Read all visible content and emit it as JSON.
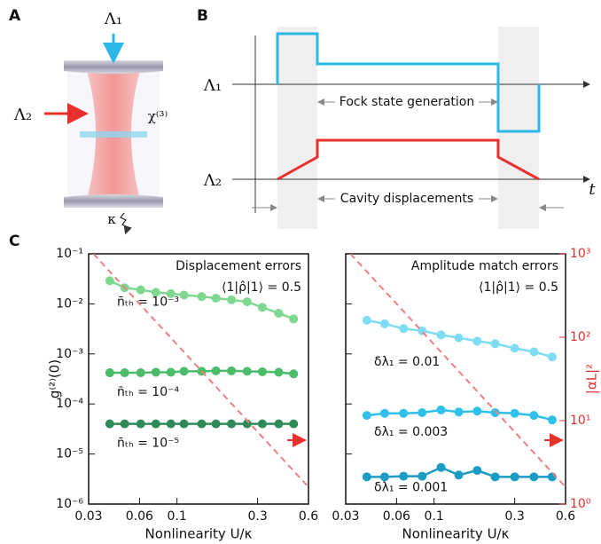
{
  "figure": {
    "panel_labels": [
      "A",
      "B",
      "C"
    ],
    "cavity": {
      "pump_top": "Λ₁",
      "pump_left": "Λ₂",
      "nonlinearity": "χ⁽³⁾",
      "decay": "κ"
    },
    "sequence": {
      "drive_1": "Λ₁",
      "drive_2": "Λ₂",
      "time": "t",
      "fock": "Fock state generation",
      "displacements": "Cavity displacements"
    }
  },
  "chart_data": [
    {
      "type": "line",
      "xscale": "log",
      "yscale": "log",
      "y2scale": "log",
      "annotations": [
        "Displacement errors",
        "⟨1|ρ̂|1⟩ = 0.5"
      ],
      "xlabel": "Nonlinearity U/κ",
      "ylabel": "g⁽²⁾(0)",
      "x": [
        0.04,
        0.049,
        0.061,
        0.075,
        0.092,
        0.11,
        0.14,
        0.17,
        0.21,
        0.26,
        0.32,
        0.4,
        0.49
      ],
      "xlim": [
        0.03,
        0.6
      ],
      "xticks": [
        0.03,
        0.06,
        0.1,
        0.3,
        0.6
      ],
      "ylim": [
        1e-06,
        0.1
      ],
      "yticks": [
        {
          "value": 1e-06,
          "label": "10⁻⁶"
        },
        {
          "value": 1e-05,
          "label": "10⁻⁵"
        },
        {
          "value": 0.0001,
          "label": "10⁻⁴"
        },
        {
          "value": 0.001,
          "label": "10⁻³"
        },
        {
          "value": 0.01,
          "label": "10⁻²"
        },
        {
          "value": 0.1,
          "label": "10⁻¹"
        }
      ],
      "ytick_labels": true,
      "y2lim": [
        1,
        1000
      ],
      "series": [
        {
          "name": "n̄ₜₕ = 10⁻³",
          "color": "#7fd88f",
          "values": [
            0.029,
            0.021,
            0.019,
            0.017,
            0.016,
            0.015,
            0.014,
            0.013,
            0.012,
            0.011,
            0.0085,
            0.0065,
            0.005
          ]
        },
        {
          "name": "n̄ₜₕ = 10⁻⁴",
          "color": "#4cbb6a",
          "values": [
            0.00042,
            0.00042,
            0.00042,
            0.00043,
            0.00043,
            0.00045,
            0.00045,
            0.00046,
            0.00046,
            0.00045,
            0.00044,
            0.00043,
            0.0004
          ]
        },
        {
          "name": "n̄ₜₕ = 10⁻⁵",
          "color": "#2e8b57",
          "values": [
            4e-05,
            4e-05,
            4e-05,
            4e-05,
            4e-05,
            4e-05,
            4e-05,
            4e-05,
            4e-05,
            4e-05,
            4e-05,
            4e-05,
            4e-05
          ]
        },
        {
          "color": "#f08080",
          "dashed": true,
          "axis": "y2",
          "x": [
            0.032,
            0.6
          ],
          "values": [
            1000,
            1.6
          ]
        }
      ]
    },
    {
      "type": "line",
      "xscale": "log",
      "yscale": "log",
      "y2scale": "log",
      "annotations": [
        "Amplitude match errors",
        "⟨1|ρ̂|1⟩ = 0.5"
      ],
      "xlabel": "Nonlinearity U/κ",
      "y2label": "|αL|²",
      "x": [
        0.04,
        0.051,
        0.066,
        0.085,
        0.11,
        0.14,
        0.18,
        0.23,
        0.3,
        0.39,
        0.5
      ],
      "xlim": [
        0.03,
        0.6
      ],
      "xticks": [
        0.03,
        0.06,
        0.1,
        0.3,
        0.6
      ],
      "ylim": [
        1e-06,
        0.1
      ],
      "yticks": [
        1e-06,
        1e-05,
        0.0001,
        0.001,
        0.01,
        0.1
      ],
      "ytick_labels": false,
      "y2lim": [
        1,
        1000
      ],
      "y2ticks": [
        {
          "value": 1,
          "label": "10⁰"
        },
        {
          "value": 10,
          "label": "10¹"
        },
        {
          "value": 100,
          "label": "10²"
        },
        {
          "value": 1000,
          "label": "10³"
        }
      ],
      "y2color": "#e8312f",
      "series": [
        {
          "name": "δλ₁ = 0.01",
          "color": "#7fdcf5",
          "values": [
            0.0047,
            0.004,
            0.0032,
            0.0029,
            0.0024,
            0.0021,
            0.0018,
            0.0016,
            0.0013,
            0.0011,
            0.00087
          ]
        },
        {
          "name": "δλ₁ = 0.003",
          "color": "#30c0ec",
          "values": [
            5.9e-05,
            6.5e-05,
            6.5e-05,
            6.7e-05,
            7.6e-05,
            6.9e-05,
            7.2e-05,
            6.7e-05,
            6.5e-05,
            5.9e-05,
            4.8e-05
          ]
        },
        {
          "name": "δλ₁ = 0.001",
          "color": "#1a9cc4",
          "values": [
            3.5e-06,
            3.5e-06,
            3.6e-06,
            3.6e-06,
            5.4e-06,
            3.8e-06,
            4.7e-06,
            3.5e-06,
            3.5e-06,
            3.5e-06,
            3.5e-06
          ]
        },
        {
          "color": "#f08080",
          "dashed": true,
          "axis": "y2",
          "x": [
            0.032,
            0.6
          ],
          "values": [
            1000,
            1.6
          ]
        }
      ]
    }
  ]
}
